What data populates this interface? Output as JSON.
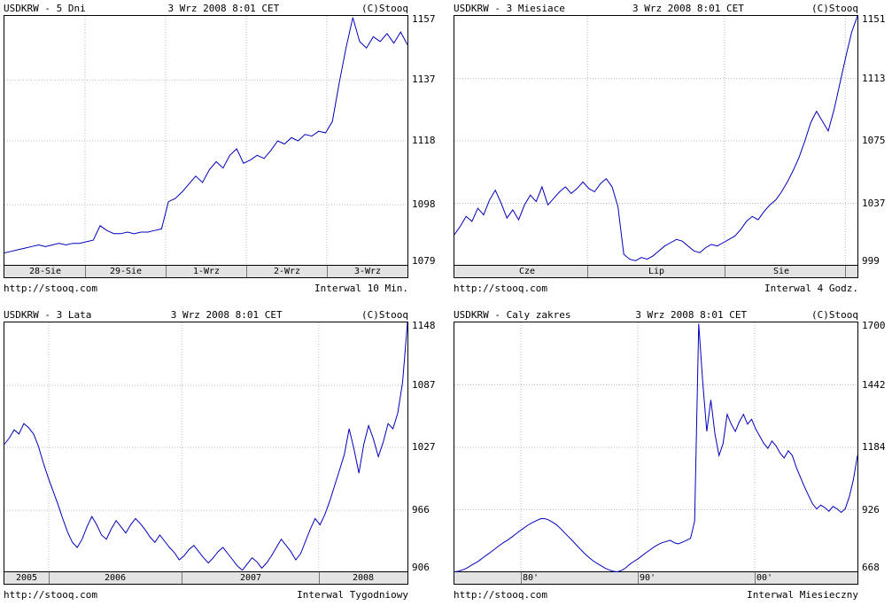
{
  "theme": {
    "background": "#ffffff",
    "grid_color": "#bbbbbb",
    "band_background": "#e3e3e3",
    "border_color": "#000000"
  },
  "chart_data": [
    {
      "type": "line",
      "title": "USDKRW - 5 Dni",
      "datetime": "3 Wrz 2008 8:01 CET",
      "copyright": "(C)Stooq",
      "footer_url": "http://stooq.com",
      "interval": "Interwal 10 Min.",
      "line_color": "#0000bb",
      "ylim": [
        1079,
        1157
      ],
      "yticks": [
        1157,
        1137,
        1118,
        1098,
        1079
      ],
      "xticks": [
        {
          "label": "28-Sie",
          "pos": 0.1
        },
        {
          "label": "29-Sie",
          "pos": 0.3
        },
        {
          "label": "1-Wrz",
          "pos": 0.5
        },
        {
          "label": "2-Wrz",
          "pos": 0.7
        },
        {
          "label": "3-Wrz",
          "pos": 0.9
        }
      ],
      "xbounds": [
        0.2,
        0.4,
        0.6,
        0.8
      ],
      "values": [
        1083,
        1083.5,
        1084,
        1084.5,
        1085,
        1085.5,
        1085,
        1085.5,
        1086,
        1085.5,
        1086,
        1086,
        1086.5,
        1087,
        1091.5,
        1090,
        1089,
        1089,
        1089.5,
        1089,
        1089.5,
        1089.5,
        1090,
        1090.5,
        1099,
        1100,
        1102,
        1104.5,
        1107,
        1105,
        1109,
        1111.5,
        1109.5,
        1113.5,
        1115.5,
        1111,
        1112,
        1113.5,
        1112.5,
        1115,
        1118,
        1117,
        1119,
        1118,
        1120,
        1119.5,
        1121,
        1120.5,
        1124,
        1136,
        1147,
        1156.5,
        1149,
        1147,
        1150.5,
        1149,
        1151.5,
        1148.5,
        1152,
        1148
      ]
    },
    {
      "type": "line",
      "title": "USDKRW - 3 Miesiace",
      "datetime": "3 Wrz 2008 8:01 CET",
      "copyright": "(C)Stooq",
      "footer_url": "http://stooq.com",
      "interval": "Interwal 4 Godz.",
      "line_color": "#0000bb",
      "ylim": [
        999,
        1151
      ],
      "yticks": [
        1151,
        1113,
        1075,
        1037,
        999
      ],
      "xticks": [
        {
          "label": "Cze",
          "pos": 0.18
        },
        {
          "label": "Lip",
          "pos": 0.5
        },
        {
          "label": "Sie",
          "pos": 0.81
        }
      ],
      "xbounds": [
        0.33,
        0.67,
        0.97
      ],
      "values": [
        1018,
        1023,
        1029,
        1026,
        1034,
        1030,
        1039,
        1045,
        1037,
        1028,
        1033,
        1027,
        1036,
        1042,
        1038,
        1047,
        1036,
        1040,
        1044,
        1047,
        1043,
        1046,
        1050,
        1046,
        1044,
        1049,
        1052,
        1047,
        1035,
        1006,
        1003,
        1002,
        1004,
        1003,
        1005,
        1008,
        1011,
        1013,
        1015,
        1014,
        1011,
        1008,
        1007,
        1010,
        1012,
        1011,
        1013,
        1015,
        1017,
        1021,
        1026,
        1029,
        1027,
        1032,
        1036,
        1039,
        1044,
        1050,
        1057,
        1065,
        1075,
        1086,
        1093,
        1087,
        1081,
        1094,
        1110,
        1126,
        1141,
        1151
      ]
    },
    {
      "type": "line",
      "title": "USDKRW - 3 Lata",
      "datetime": "3 Wrz 2008 8:01 CET",
      "copyright": "(C)Stooq",
      "footer_url": "http://stooq.com",
      "interval": "Interwal Tygodniowy",
      "line_color": "#0000bb",
      "ylim": [
        906,
        1148
      ],
      "yticks": [
        1148,
        1087,
        1027,
        966,
        906
      ],
      "xticks": [
        {
          "label": "2005",
          "pos": 0.055
        },
        {
          "label": "2006",
          "pos": 0.275
        },
        {
          "label": "2007",
          "pos": 0.61
        },
        {
          "label": "2008",
          "pos": 0.89
        }
      ],
      "xbounds": [
        0.11,
        0.44,
        0.78
      ],
      "values": [
        1030,
        1036,
        1044,
        1040,
        1050,
        1046,
        1040,
        1028,
        1012,
        998,
        985,
        972,
        958,
        945,
        935,
        930,
        938,
        950,
        960,
        952,
        942,
        938,
        948,
        956,
        950,
        944,
        952,
        958,
        953,
        947,
        940,
        935,
        942,
        936,
        930,
        925,
        918,
        922,
        928,
        932,
        926,
        920,
        915,
        920,
        926,
        930,
        924,
        918,
        912,
        908,
        914,
        920,
        916,
        910,
        915,
        922,
        930,
        938,
        932,
        926,
        918,
        924,
        936,
        948,
        958,
        952,
        962,
        975,
        990,
        1005,
        1020,
        1045,
        1025,
        1002,
        1030,
        1048,
        1035,
        1018,
        1032,
        1050,
        1045,
        1060,
        1090,
        1148
      ]
    },
    {
      "type": "line",
      "title": "USDKRW - Caly zakres",
      "datetime": "3 Wrz 2008 8:01 CET",
      "copyright": "(C)Stooq",
      "footer_url": "http://stooq.com",
      "interval": "Interwal Miesieczny",
      "line_color": "#0000bb",
      "ylim": [
        668,
        1700
      ],
      "yticks": [
        1700,
        1442,
        1184,
        926,
        668
      ],
      "xticks": [
        {
          "label": "80'",
          "pos": 0.19
        },
        {
          "label": "90'",
          "pos": 0.48
        },
        {
          "label": "00'",
          "pos": 0.77
        }
      ],
      "xbounds": [
        0.165,
        0.455,
        0.745
      ],
      "values": [
        670,
        672,
        678,
        685,
        695,
        705,
        715,
        728,
        740,
        752,
        765,
        778,
        790,
        800,
        812,
        825,
        838,
        850,
        862,
        872,
        880,
        888,
        890,
        885,
        876,
        865,
        850,
        832,
        815,
        798,
        780,
        762,
        745,
        730,
        716,
        705,
        695,
        685,
        678,
        672,
        670,
        675,
        685,
        700,
        712,
        722,
        735,
        748,
        760,
        772,
        782,
        790,
        795,
        800,
        790,
        785,
        792,
        800,
        808,
        880,
        1695,
        1450,
        1250,
        1380,
        1240,
        1150,
        1200,
        1320,
        1280,
        1250,
        1290,
        1320,
        1280,
        1300,
        1260,
        1230,
        1200,
        1180,
        1210,
        1190,
        1160,
        1140,
        1170,
        1150,
        1100,
        1060,
        1020,
        985,
        950,
        930,
        945,
        935,
        920,
        940,
        930,
        915,
        930,
        980,
        1050,
        1150
      ]
    }
  ]
}
